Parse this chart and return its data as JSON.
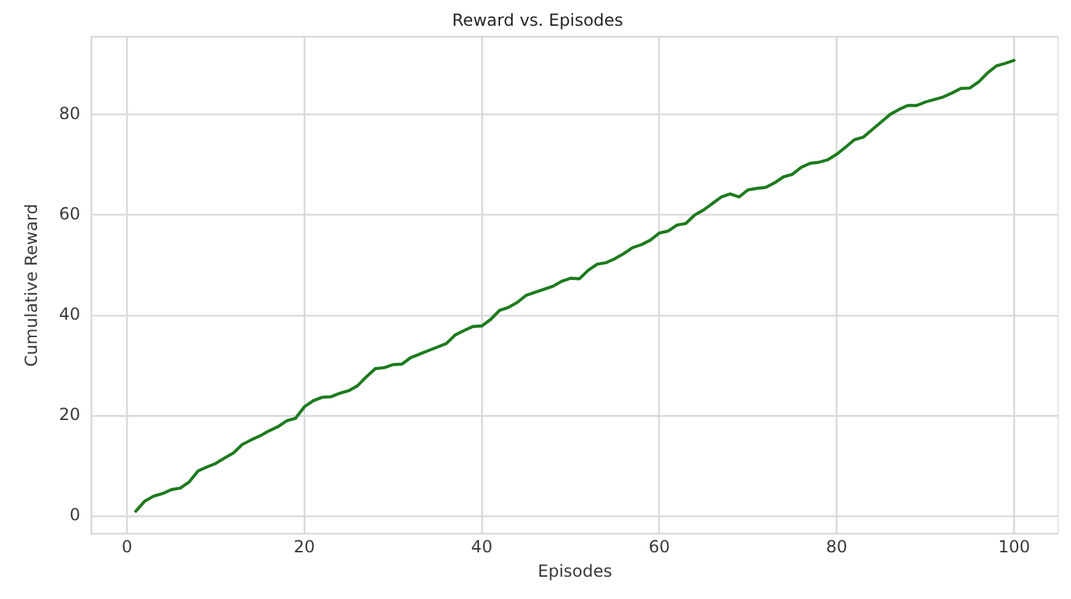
{
  "chart_data": {
    "type": "line",
    "title": "Reward vs. Episodes",
    "xlabel": "Episodes",
    "ylabel": "Cumulative Reward",
    "x": [
      1,
      2,
      3,
      4,
      5,
      6,
      7,
      8,
      9,
      10,
      11,
      12,
      13,
      14,
      15,
      16,
      17,
      18,
      19,
      20,
      21,
      22,
      23,
      24,
      25,
      26,
      27,
      28,
      29,
      30,
      31,
      32,
      33,
      34,
      35,
      36,
      37,
      38,
      39,
      40,
      41,
      42,
      43,
      44,
      45,
      46,
      47,
      48,
      49,
      50,
      51,
      52,
      53,
      54,
      55,
      56,
      57,
      58,
      59,
      60,
      61,
      62,
      63,
      64,
      65,
      66,
      67,
      68,
      69,
      70,
      71,
      72,
      73,
      74,
      75,
      76,
      77,
      78,
      79,
      80,
      81,
      82,
      83,
      84,
      85,
      86,
      87,
      88,
      89,
      90,
      91,
      92,
      93,
      94,
      95,
      96,
      97,
      98,
      99,
      100
    ],
    "series": [
      {
        "color": "#1e7b1e",
        "values": [
          1,
          3,
          4,
          4.5,
          5.3,
          5.6,
          6.8,
          9,
          9.8,
          10.5,
          11.6,
          12.6,
          14.3,
          15.2,
          16,
          17,
          17.8,
          19,
          19.5,
          21.8,
          23,
          23.7,
          23.8,
          24.5,
          25,
          26,
          27.8,
          29.4,
          29.6,
          30.2,
          30.3,
          31.6,
          32.3,
          33,
          33.7,
          34.4,
          36.1,
          37,
          37.8,
          37.9,
          39.2,
          41,
          41.6,
          42.6,
          44,
          44.6,
          45.2,
          45.8,
          46.8,
          47.4,
          47.3,
          49,
          50.2,
          50.5,
          51.3,
          52.3,
          53.5,
          54.1,
          55,
          56.4,
          56.8,
          58,
          58.3,
          60,
          61,
          62.3,
          63.6,
          64.2,
          63.6,
          65,
          65.3,
          65.5,
          66.4,
          67.6,
          68.1,
          69.5,
          70.3,
          70.5,
          71,
          72.1,
          73.5,
          75,
          75.5,
          77,
          78.5,
          80,
          81,
          81.8,
          81.8,
          82.5,
          83,
          83.5,
          84.3,
          85.2,
          85.3,
          86.5,
          88.3,
          89.7,
          90.2,
          90.8
        ]
      }
    ],
    "xlim": [
      -4,
      105
    ],
    "ylim": [
      -3.5,
      95.5
    ],
    "xticks": [
      0,
      20,
      40,
      60,
      80,
      100
    ],
    "yticks": [
      0,
      20,
      40,
      60,
      80
    ],
    "grid": true,
    "legend": false,
    "marker": "none",
    "line_style": "solid"
  }
}
